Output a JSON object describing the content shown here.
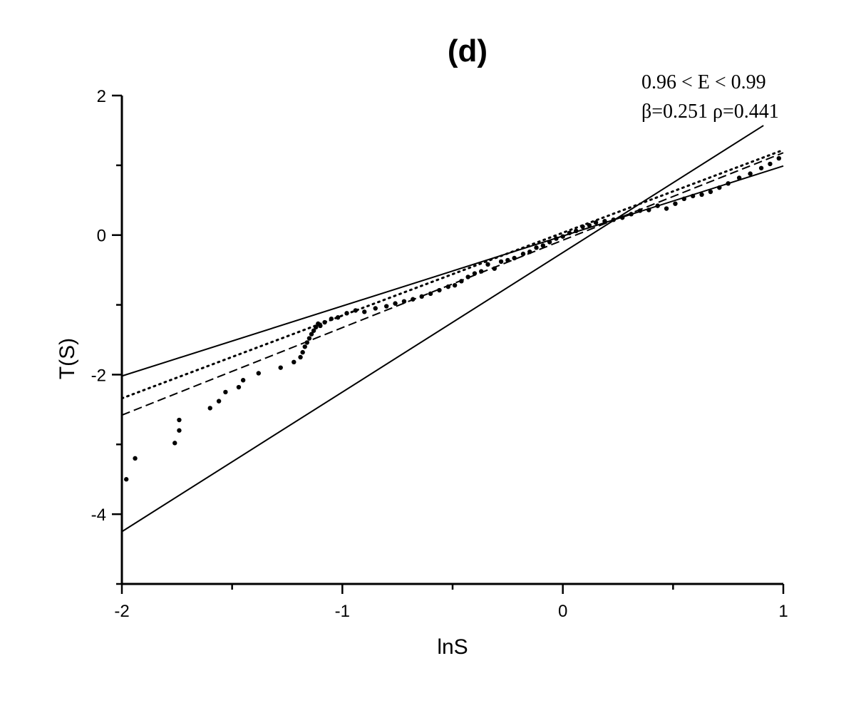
{
  "chart_data": {
    "type": "scatter",
    "title": "(d)",
    "xlabel": "lnS",
    "ylabel": "T(S)",
    "xlim": [
      -2,
      1
    ],
    "ylim": [
      -5,
      2
    ],
    "x_ticks": [
      -2,
      -1,
      0,
      1
    ],
    "x_tick_labels": [
      "-2",
      "-1",
      "0",
      "1"
    ],
    "y_ticks": [
      2,
      0,
      -2,
      -4
    ],
    "y_tick_labels": [
      "2",
      "0",
      "-2",
      "-4"
    ],
    "annotations": [
      "0.96 < E < 0.99",
      "β=0.251 ρ=0.441"
    ],
    "grid": false,
    "legend": "none",
    "lines": [
      {
        "style": "solid",
        "x": [
          -2,
          1
        ],
        "y": [
          -2.02,
          0.99
        ]
      },
      {
        "style": "solid",
        "x": [
          -2,
          0.91
        ],
        "y": [
          -4.25,
          1.57
        ]
      },
      {
        "style": "dashed",
        "x": [
          -2,
          1
        ],
        "y": [
          -2.58,
          1.18
        ]
      },
      {
        "style": "dotted",
        "x": [
          -2,
          1
        ],
        "y": [
          -2.34,
          1.22
        ]
      }
    ],
    "series": [
      {
        "style": "points",
        "x": [
          -1.98,
          -1.94,
          -1.76,
          -1.74,
          -1.74,
          -1.6,
          -1.56,
          -1.53,
          -1.47,
          -1.45,
          -1.38,
          -1.28,
          -1.22,
          -1.19,
          -1.18,
          -1.17,
          -1.16,
          -1.15,
          -1.14,
          -1.13,
          -1.12,
          -1.11,
          -1.1,
          -1.08,
          -1.05,
          -1.02,
          -0.98,
          -0.94,
          -0.9,
          -0.85,
          -0.8,
          -0.76,
          -0.72,
          -0.68,
          -0.64,
          -0.6,
          -0.56,
          -0.52,
          -0.49,
          -0.46,
          -0.43,
          -0.4,
          -0.37,
          -0.34,
          -0.31,
          -0.28,
          -0.25,
          -0.22,
          -0.18,
          -0.15,
          -0.12,
          -0.09,
          -0.06,
          -0.03,
          0.0,
          0.03,
          0.06,
          0.09,
          0.12,
          0.15,
          0.19,
          0.23,
          0.27,
          0.31,
          0.35,
          0.39,
          0.43,
          0.47,
          0.51,
          0.55,
          0.59,
          0.63,
          0.67,
          0.71,
          0.75,
          0.8,
          0.85,
          0.9,
          0.94,
          0.98
        ],
        "y": [
          -3.5,
          -3.2,
          -2.98,
          -2.8,
          -2.65,
          -2.48,
          -2.38,
          -2.25,
          -2.18,
          -2.08,
          -1.98,
          -1.9,
          -1.82,
          -1.75,
          -1.68,
          -1.6,
          -1.54,
          -1.48,
          -1.42,
          -1.37,
          -1.32,
          -1.27,
          -1.3,
          -1.25,
          -1.2,
          -1.18,
          -1.12,
          -1.08,
          -1.1,
          -1.05,
          -1.02,
          -0.98,
          -0.95,
          -0.92,
          -0.88,
          -0.84,
          -0.79,
          -0.74,
          -0.72,
          -0.66,
          -0.6,
          -0.55,
          -0.52,
          -0.42,
          -0.48,
          -0.38,
          -0.36,
          -0.33,
          -0.27,
          -0.24,
          -0.18,
          -0.15,
          -0.1,
          -0.05,
          -0.02,
          0.03,
          0.06,
          0.12,
          0.14,
          0.18,
          0.2,
          0.22,
          0.25,
          0.3,
          0.35,
          0.36,
          0.42,
          0.38,
          0.45,
          0.52,
          0.56,
          0.58,
          0.62,
          0.68,
          0.74,
          0.82,
          0.88,
          0.96,
          1.02,
          1.1
        ]
      }
    ]
  }
}
